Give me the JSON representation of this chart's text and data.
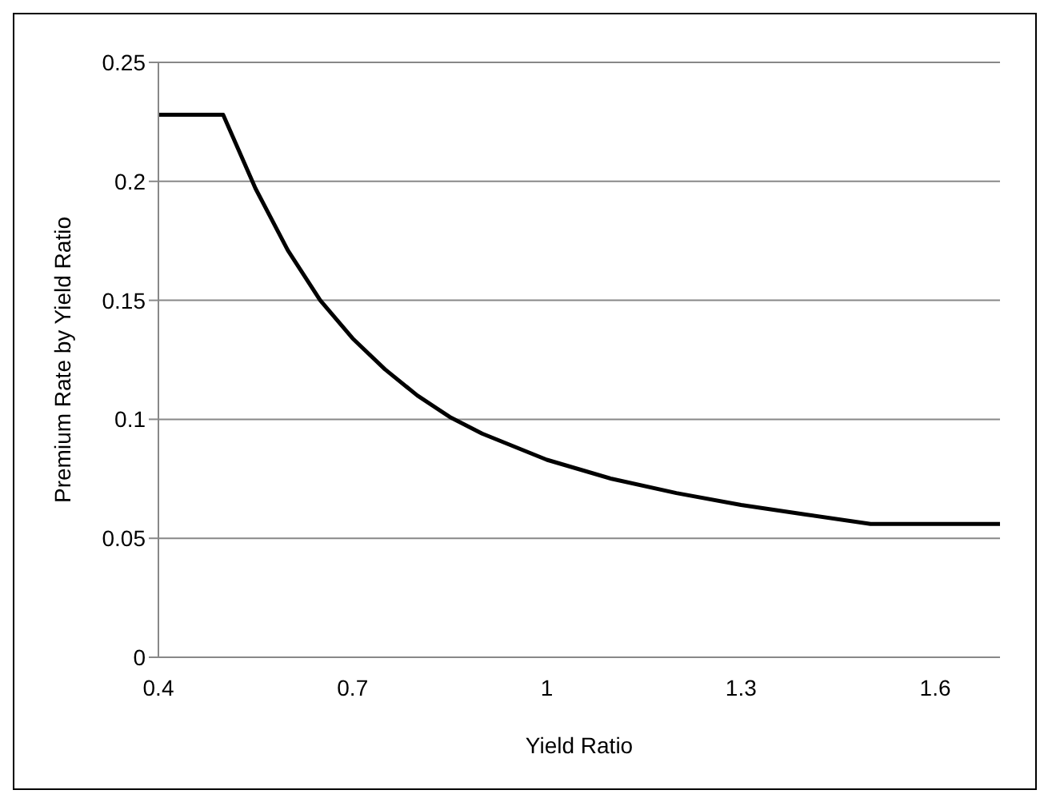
{
  "chart_data": {
    "type": "line",
    "xlabel": "Yield Ratio",
    "ylabel": "Premium Rate by Yield Ratio",
    "x": [
      0.4,
      0.5,
      0.55,
      0.6,
      0.65,
      0.7,
      0.75,
      0.8,
      0.85,
      0.9,
      1.0,
      1.1,
      1.2,
      1.3,
      1.4,
      1.5,
      1.6,
      1.7
    ],
    "series": [
      {
        "color": "#000000",
        "values": [
          0.228,
          0.228,
          0.197,
          0.171,
          0.15,
          0.134,
          0.121,
          0.11,
          0.101,
          0.094,
          0.083,
          0.075,
          0.069,
          0.064,
          0.06,
          0.056,
          0.056,
          0.056
        ]
      }
    ],
    "xlim": [
      0.4,
      1.7
    ],
    "xticks": [
      0.4,
      0.7,
      1,
      1.3,
      1.6
    ],
    "ylim": [
      0,
      0.25
    ],
    "yticks": [
      0,
      0.05,
      0.1,
      0.15,
      0.2,
      0.25
    ],
    "grid": "y",
    "legend": false,
    "marker": "none",
    "line_style": "solid"
  }
}
